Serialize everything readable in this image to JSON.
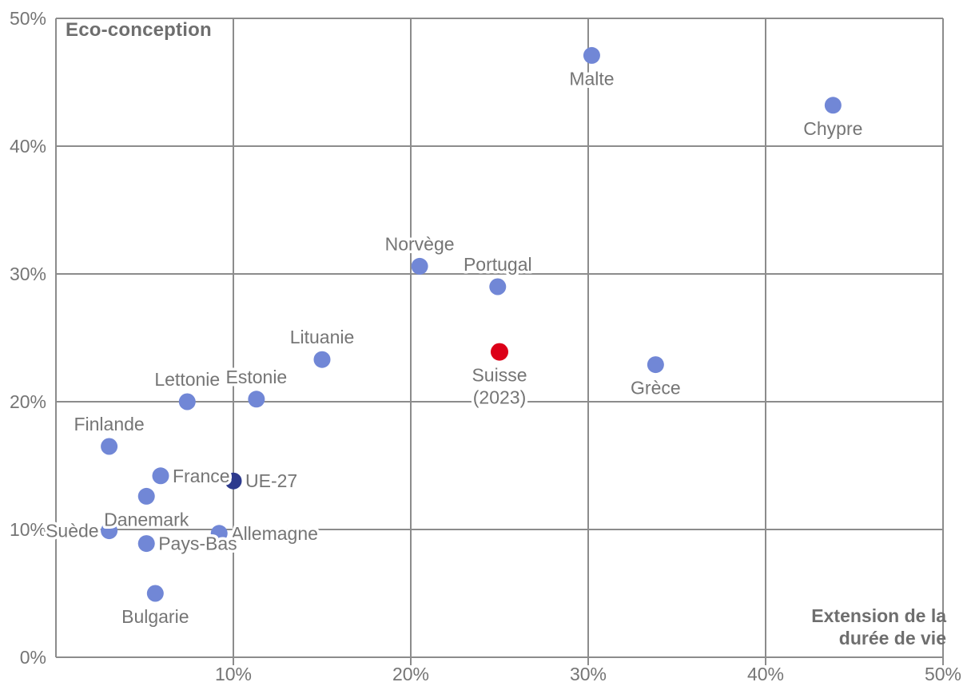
{
  "chart": {
    "y_title": "Eco-conception",
    "x_title_line1": "Extension de la",
    "x_title_line2": "durée de vie"
  },
  "chart_data": {
    "type": "scatter",
    "title": "",
    "xlabel": "Extension de la durée de vie",
    "ylabel": "Eco-conception",
    "xlim": [
      0,
      50
    ],
    "ylim": [
      0,
      50
    ],
    "x_ticks": [
      0,
      10,
      20,
      30,
      40,
      50
    ],
    "x_tick_labels": [
      "",
      "10%",
      "20%",
      "30%",
      "40%",
      "50%"
    ],
    "y_ticks": [
      0,
      10,
      20,
      30,
      40,
      50
    ],
    "y_tick_labels": [
      "0%",
      "10%",
      "20%",
      "30%",
      "40%",
      "50%"
    ],
    "grid": true,
    "legend": "none",
    "units": "percent",
    "colors": {
      "default": "#7187d6",
      "eu": "#2d3a8d",
      "highlight": "#dc0018",
      "grid": "#8c8c8c",
      "tick_text": "#757575",
      "label_text": "#757575"
    },
    "points": [
      {
        "name": "Malte",
        "x": 30.2,
        "y": 47.1,
        "color": "default",
        "label_pos": "below"
      },
      {
        "name": "Chypre",
        "x": 43.8,
        "y": 43.2,
        "color": "default",
        "label_pos": "below"
      },
      {
        "name": "Norvège",
        "x": 20.5,
        "y": 30.6,
        "color": "default",
        "label_pos": "above"
      },
      {
        "name": "Portugal",
        "x": 24.9,
        "y": 29.0,
        "color": "default",
        "label_pos": "above"
      },
      {
        "name": "Lituanie",
        "x": 15.0,
        "y": 23.3,
        "color": "default",
        "label_pos": "above"
      },
      {
        "name": "Estonie",
        "x": 11.3,
        "y": 20.2,
        "color": "default",
        "label_pos": "above"
      },
      {
        "name": "Lettonie",
        "x": 7.4,
        "y": 20.0,
        "color": "default",
        "label_pos": "above"
      },
      {
        "name": "Finlande",
        "x": 3.0,
        "y": 16.5,
        "color": "default",
        "label_pos": "above"
      },
      {
        "name": "France",
        "x": 5.9,
        "y": 14.2,
        "color": "default",
        "label_pos": "right"
      },
      {
        "name": "UE-27",
        "x": 10.0,
        "y": 13.8,
        "color": "eu",
        "label_pos": "right"
      },
      {
        "name": "Suède",
        "x": 3.0,
        "y": 9.9,
        "color": "default",
        "label_pos": "left"
      },
      {
        "name": "Danemark",
        "x": 5.1,
        "y": 12.6,
        "color": "default",
        "label_pos": "below"
      },
      {
        "name": "Allemagne",
        "x": 9.2,
        "y": 9.7,
        "color": "default",
        "label_pos": "right"
      },
      {
        "name": "Pays-Bas",
        "x": 5.1,
        "y": 8.9,
        "color": "default",
        "label_pos": "right"
      },
      {
        "name": "Bulgarie",
        "x": 5.6,
        "y": 5.0,
        "color": "default",
        "label_pos": "below"
      },
      {
        "name": "Grèce",
        "x": 33.8,
        "y": 22.9,
        "color": "default",
        "label_pos": "below"
      },
      {
        "name": "Suisse (2023)",
        "x": 25.0,
        "y": 23.9,
        "color": "highlight",
        "label_pos": "below",
        "label_lines": [
          "Suisse",
          "(2023)"
        ]
      }
    ]
  }
}
